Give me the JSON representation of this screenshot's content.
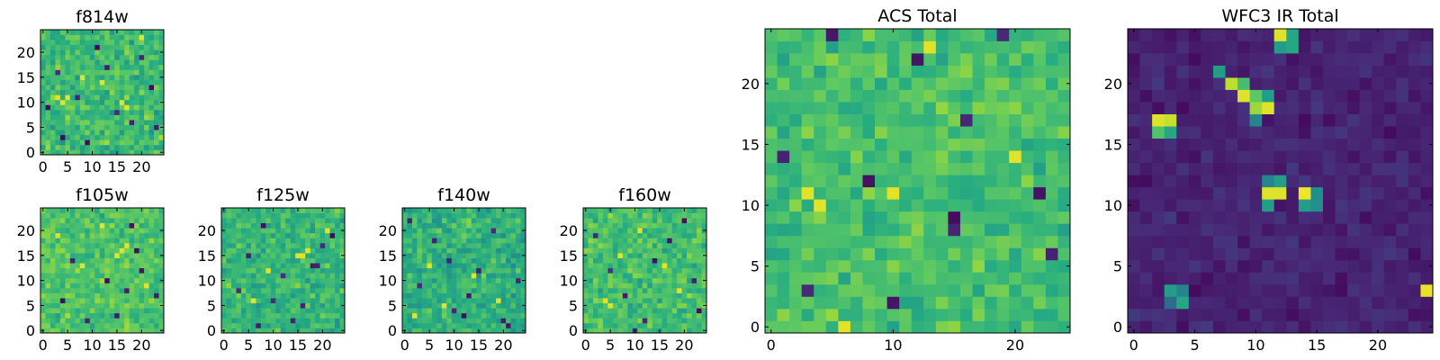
{
  "page": {
    "background": "#ffffff"
  },
  "colormap": {
    "name": "viridis",
    "stops": [
      "#440154",
      "#472c7a",
      "#3b518b",
      "#2c718e",
      "#21908d",
      "#27ad81",
      "#5cc863",
      "#aadc32",
      "#fde725"
    ]
  },
  "chart_data": [
    {
      "type": "heatmap",
      "title": "f814w",
      "grid": [
        25,
        25
      ],
      "xlim": [
        -0.5,
        24.5
      ],
      "ylim": [
        -0.5,
        24.5
      ],
      "xticks": [
        0,
        5,
        10,
        15,
        20
      ],
      "yticks": [
        0,
        5,
        10,
        15,
        20
      ],
      "value_range": [
        0,
        1
      ],
      "mean": 0.68,
      "spread": 0.12,
      "low_pixels": [
        [
          4,
          3
        ],
        [
          18,
          6
        ],
        [
          20,
          19
        ],
        [
          11,
          21
        ],
        [
          7,
          11
        ],
        [
          15,
          8
        ],
        [
          3,
          16
        ],
        [
          22,
          13
        ],
        [
          9,
          2
        ],
        [
          13,
          17
        ],
        [
          1,
          9
        ],
        [
          23,
          5
        ]
      ],
      "high_pixels": [
        [
          4,
          10
        ],
        [
          5,
          11
        ],
        [
          3,
          11
        ],
        [
          16,
          10
        ],
        [
          17,
          9
        ],
        [
          12,
          14
        ],
        [
          20,
          23
        ],
        [
          8,
          15
        ]
      ]
    },
    {
      "type": "heatmap",
      "title": "f105w",
      "grid": [
        25,
        25
      ],
      "xlim": [
        -0.5,
        24.5
      ],
      "ylim": [
        -0.5,
        24.5
      ],
      "xticks": [
        0,
        5,
        10,
        15,
        20
      ],
      "yticks": [
        0,
        5,
        10,
        15,
        20
      ],
      "value_range": [
        0,
        1
      ],
      "mean": 0.72,
      "spread": 0.1,
      "low_pixels": [
        [
          18,
          21
        ],
        [
          19,
          16
        ],
        [
          20,
          12
        ],
        [
          15,
          3
        ],
        [
          4,
          6
        ],
        [
          9,
          2
        ],
        [
          23,
          7
        ],
        [
          13,
          10
        ],
        [
          6,
          14
        ],
        [
          17,
          8
        ]
      ],
      "high_pixels": [
        [
          16,
          16
        ],
        [
          15,
          15
        ],
        [
          17,
          17
        ],
        [
          8,
          13
        ],
        [
          3,
          19
        ],
        [
          21,
          9
        ],
        [
          12,
          21
        ]
      ]
    },
    {
      "type": "heatmap",
      "title": "f125w",
      "grid": [
        25,
        25
      ],
      "xlim": [
        -0.5,
        24.5
      ],
      "ylim": [
        -0.5,
        24.5
      ],
      "xticks": [
        0,
        5,
        10,
        15,
        20
      ],
      "yticks": [
        0,
        5,
        10,
        15,
        20
      ],
      "value_range": [
        0,
        1
      ],
      "mean": 0.66,
      "spread": 0.11,
      "low_pixels": [
        [
          18,
          13
        ],
        [
          19,
          13
        ],
        [
          12,
          11
        ],
        [
          10,
          6
        ],
        [
          5,
          15
        ],
        [
          16,
          5
        ],
        [
          22,
          19
        ],
        [
          3,
          8
        ],
        [
          8,
          21
        ],
        [
          14,
          2
        ],
        [
          20,
          17
        ],
        [
          7,
          1
        ]
      ],
      "high_pixels": [
        [
          15,
          15
        ],
        [
          16,
          15
        ],
        [
          17,
          16
        ],
        [
          6,
          6
        ],
        [
          21,
          20
        ],
        [
          9,
          12
        ]
      ]
    },
    {
      "type": "heatmap",
      "title": "f140w",
      "grid": [
        25,
        25
      ],
      "xlim": [
        -0.5,
        24.5
      ],
      "ylim": [
        -0.5,
        24.5
      ],
      "xticks": [
        0,
        5,
        10,
        15,
        20
      ],
      "yticks": [
        0,
        5,
        10,
        15,
        20
      ],
      "value_range": [
        0,
        1
      ],
      "mean": 0.64,
      "spread": 0.12,
      "low_pixels": [
        [
          10,
          4
        ],
        [
          12,
          3
        ],
        [
          20,
          2
        ],
        [
          21,
          1
        ],
        [
          3,
          9
        ],
        [
          15,
          12
        ],
        [
          6,
          18
        ],
        [
          18,
          20
        ],
        [
          9,
          14
        ],
        [
          23,
          10
        ],
        [
          1,
          22
        ],
        [
          13,
          7
        ]
      ],
      "high_pixels": [
        [
          14,
          11
        ],
        [
          5,
          13
        ],
        [
          19,
          6
        ],
        [
          8,
          5
        ],
        [
          2,
          3
        ]
      ]
    },
    {
      "type": "heatmap",
      "title": "f160w",
      "grid": [
        25,
        25
      ],
      "xlim": [
        -0.5,
        24.5
      ],
      "ylim": [
        -0.5,
        24.5
      ],
      "xticks": [
        0,
        5,
        10,
        15,
        20
      ],
      "yticks": [
        0,
        5,
        10,
        15,
        20
      ],
      "value_range": [
        0,
        1
      ],
      "mean": 0.7,
      "spread": 0.11,
      "low_pixels": [
        [
          5,
          12
        ],
        [
          22,
          10
        ],
        [
          23,
          4
        ],
        [
          12,
          2
        ],
        [
          17,
          18
        ],
        [
          8,
          7
        ],
        [
          20,
          22
        ],
        [
          2,
          19
        ],
        [
          14,
          14
        ],
        [
          10,
          0
        ]
      ],
      "high_pixels": [
        [
          4,
          6
        ],
        [
          5,
          5
        ],
        [
          16,
          13
        ],
        [
          11,
          20
        ],
        [
          19,
          8
        ],
        [
          7,
          15
        ]
      ]
    },
    {
      "type": "heatmap",
      "title": "ACS Total",
      "grid": [
        25,
        25
      ],
      "xlim": [
        -0.5,
        24.5
      ],
      "ylim": [
        -0.5,
        24.5
      ],
      "xticks": [
        0,
        10,
        20
      ],
      "yticks": [
        0,
        5,
        10,
        15,
        20
      ],
      "value_range": [
        0,
        1
      ],
      "mean": 0.7,
      "spread": 0.1,
      "low_pixels": [
        [
          8,
          12
        ],
        [
          15,
          9
        ],
        [
          15,
          8
        ],
        [
          22,
          11
        ],
        [
          23,
          6
        ],
        [
          10,
          2
        ],
        [
          3,
          3
        ],
        [
          1,
          14
        ],
        [
          16,
          17
        ],
        [
          19,
          24
        ],
        [
          5,
          24
        ],
        [
          12,
          22
        ]
      ],
      "high_pixels": [
        [
          3,
          11
        ],
        [
          4,
          10
        ],
        [
          6,
          0
        ],
        [
          13,
          23
        ],
        [
          20,
          14
        ],
        [
          10,
          11
        ]
      ]
    },
    {
      "type": "heatmap",
      "title": "WFC3 IR Total",
      "grid": [
        25,
        25
      ],
      "xlim": [
        -0.5,
        24.5
      ],
      "ylim": [
        -0.5,
        24.5
      ],
      "xticks": [
        0,
        5,
        10,
        15,
        20
      ],
      "yticks": [
        0,
        5,
        10,
        15,
        20
      ],
      "value_range": [
        0,
        1
      ],
      "mean": 0.1,
      "spread": 0.05,
      "bright_pixels": [
        [
          12,
          24,
          0.95
        ],
        [
          13,
          24,
          0.6
        ],
        [
          12,
          23,
          0.55
        ],
        [
          13,
          23,
          0.6
        ],
        [
          7,
          21,
          0.55
        ],
        [
          8,
          20,
          0.9
        ],
        [
          9,
          20,
          0.7
        ],
        [
          9,
          19,
          0.95
        ],
        [
          10,
          19,
          0.75
        ],
        [
          11,
          19,
          0.55
        ],
        [
          10,
          18,
          0.85
        ],
        [
          11,
          18,
          0.95
        ],
        [
          10,
          17,
          0.45
        ],
        [
          2,
          17,
          0.95
        ],
        [
          3,
          17,
          0.92
        ],
        [
          2,
          16,
          0.72
        ],
        [
          3,
          16,
          0.6
        ],
        [
          11,
          12,
          0.45
        ],
        [
          12,
          12,
          0.55
        ],
        [
          11,
          11,
          0.95
        ],
        [
          12,
          11,
          0.95
        ],
        [
          11,
          10,
          0.55
        ],
        [
          14,
          11,
          0.98
        ],
        [
          15,
          11,
          0.5
        ],
        [
          14,
          10,
          0.55
        ],
        [
          15,
          10,
          0.5
        ],
        [
          3,
          3,
          0.55
        ],
        [
          4,
          3,
          0.45
        ],
        [
          3,
          2,
          0.35
        ],
        [
          4,
          2,
          0.6
        ],
        [
          24,
          3,
          0.97
        ]
      ]
    }
  ]
}
